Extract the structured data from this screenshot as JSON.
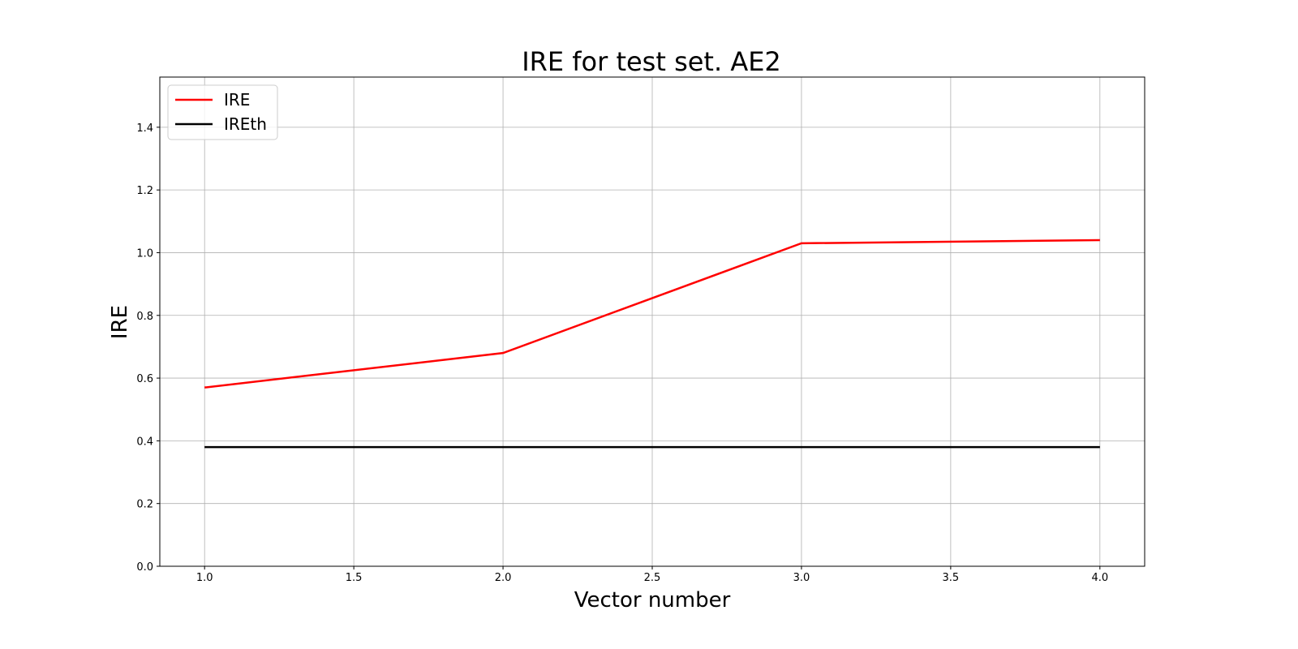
{
  "chart_data": {
    "type": "line",
    "title": "IRE for test set. AE2",
    "xlabel": "Vector number",
    "ylabel": "IRE",
    "xlim": [
      0.85,
      4.15
    ],
    "ylim": [
      0,
      1.56
    ],
    "xticks": [
      1.0,
      1.5,
      2.0,
      2.5,
      3.0,
      3.5,
      4.0
    ],
    "xtick_labels": [
      "1.0",
      "1.5",
      "2.0",
      "2.5",
      "3.0",
      "3.5",
      "4.0"
    ],
    "yticks": [
      0.0,
      0.2,
      0.4,
      0.6,
      0.8,
      1.0,
      1.2,
      1.4
    ],
    "ytick_labels": [
      "0.0",
      "0.2",
      "0.4",
      "0.6",
      "0.8",
      "1.0",
      "1.2",
      "1.4"
    ],
    "grid": true,
    "legend_position": "top-left",
    "x": [
      1,
      2,
      3,
      4
    ],
    "series": [
      {
        "name": "IRE",
        "values": [
          0.57,
          0.68,
          1.03,
          1.04
        ],
        "color": "#ff0000"
      },
      {
        "name": "IREth",
        "values": [
          0.38,
          0.38,
          0.38,
          0.38
        ],
        "color": "#000000"
      }
    ]
  }
}
